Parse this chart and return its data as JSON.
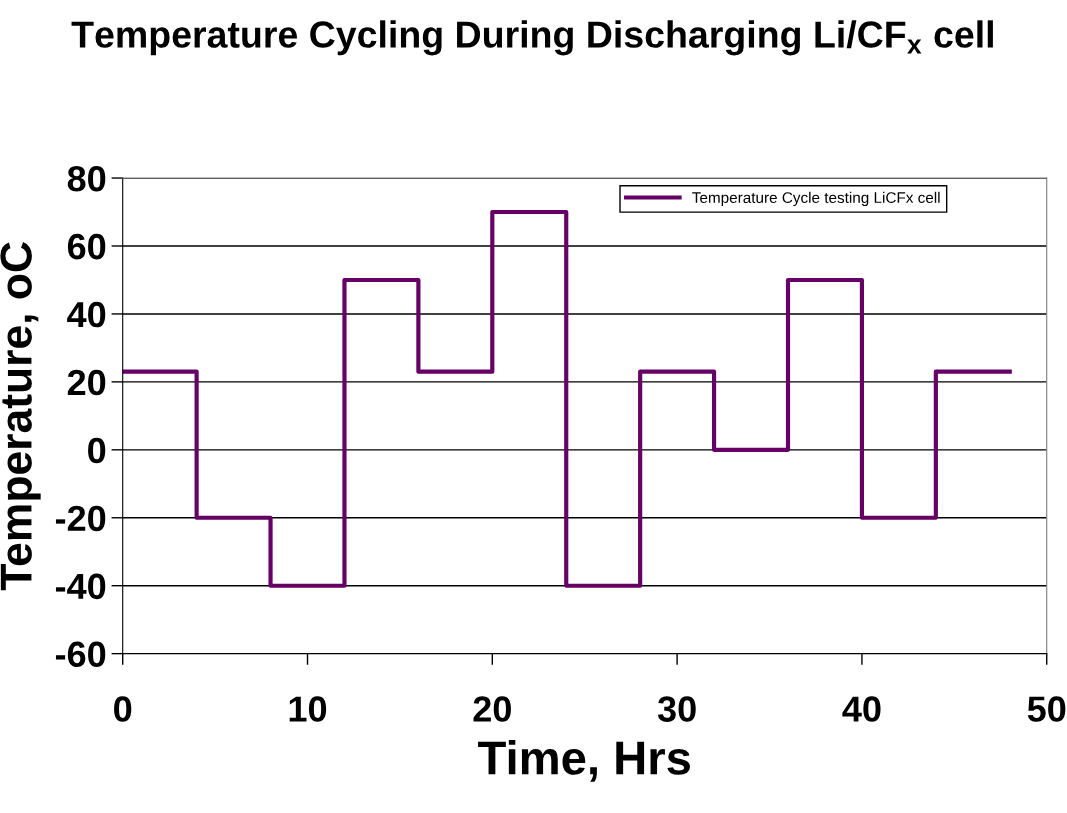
{
  "chart_data": {
    "type": "step",
    "title": "Temperature Cycling During Discharging Li/CF$_{x}$ cell",
    "xlabel": "Time, Hrs",
    "ylabel": "Temperature, oC",
    "x": [
      0,
      4,
      8,
      12,
      16,
      20,
      24,
      28,
      32,
      36,
      40,
      44,
      48
    ],
    "series": [
      {
        "name": "Temperature Cycle testing LiCFx cell",
        "color": "#660066",
        "values": [
          23,
          -20,
          -40,
          50,
          23,
          70,
          -40,
          23,
          0,
          50,
          -20,
          23,
          23
        ]
      }
    ],
    "xlim": [
      0,
      50
    ],
    "xticks": [
      0,
      10,
      20,
      30,
      40,
      50
    ],
    "ylim": [
      -60,
      80
    ],
    "yticks": [
      -60,
      -40,
      -20,
      0,
      20,
      40,
      60,
      80
    ],
    "grid": "y",
    "legend": "top right",
    "marker": "none",
    "line_style": "solid"
  }
}
